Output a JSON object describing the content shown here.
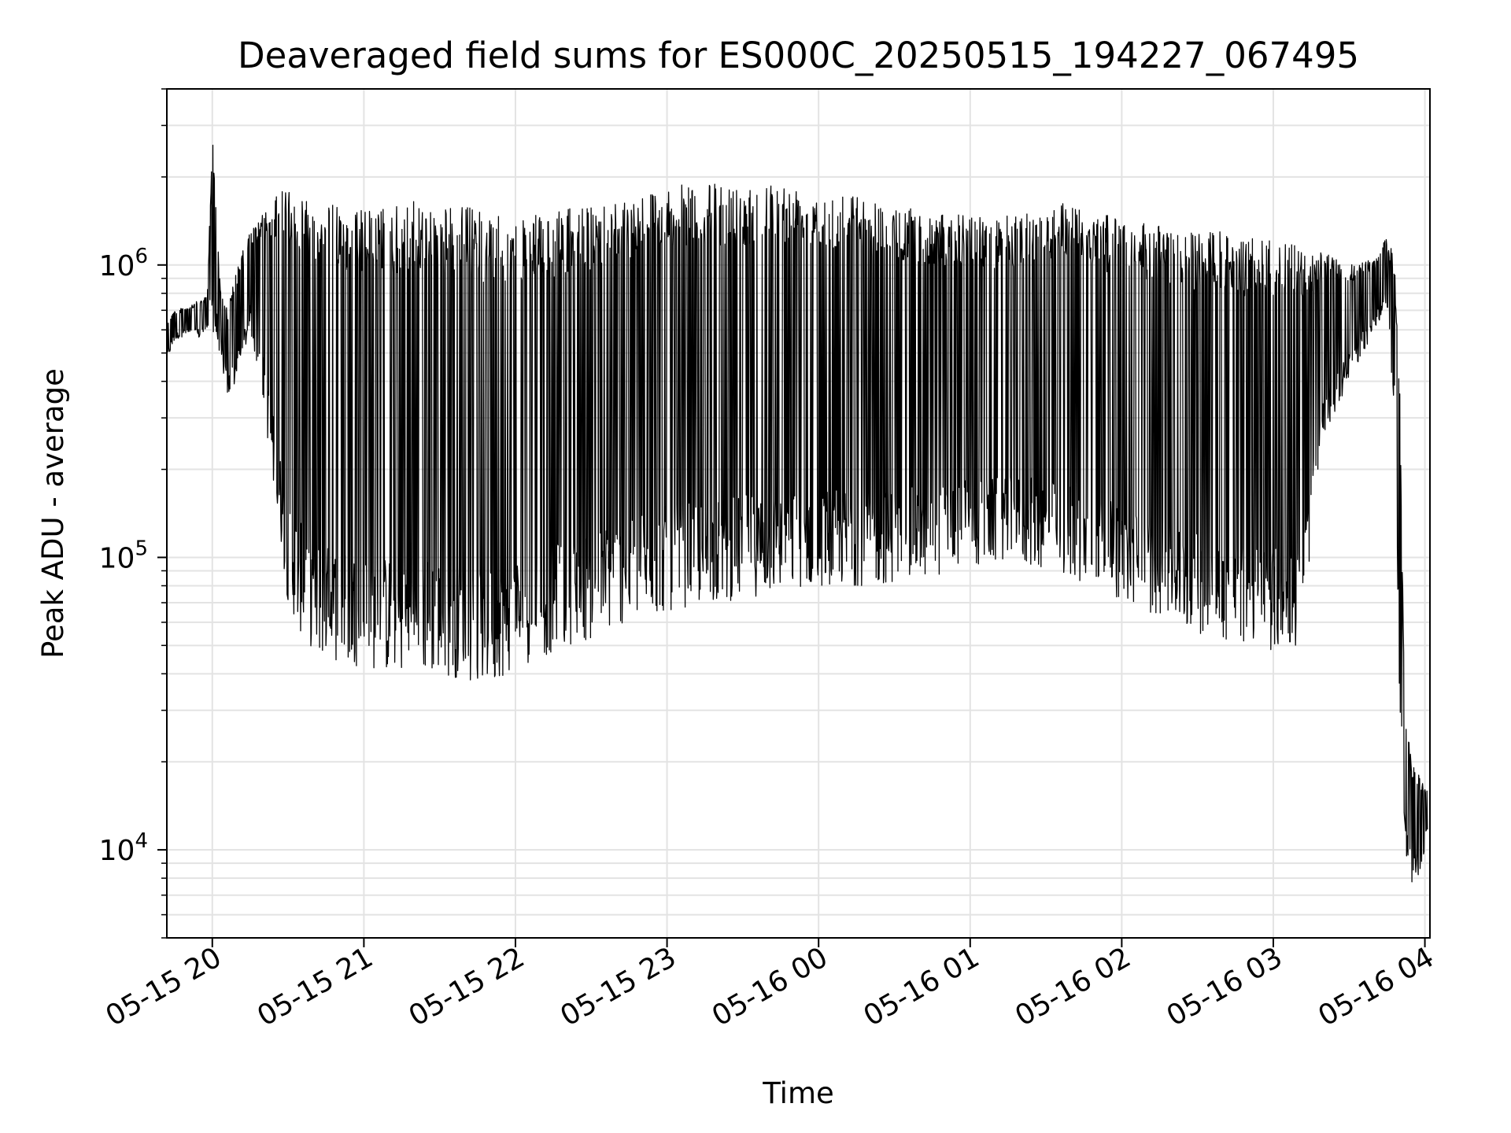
{
  "chart_data": {
    "type": "line",
    "title": "Deaveraged field sums for ES000C_20250515_194227_067495",
    "xlabel": "Time",
    "ylabel": "Peak ADU - average",
    "yscale": "log",
    "xlim": [
      "2025-05-15 19:42",
      "2025-05-16 04:02"
    ],
    "ylim": [
      5000,
      4000000
    ],
    "grid": true,
    "line_color": "#000000",
    "x_tick_labels": [
      "05-15 20",
      "05-15 21",
      "05-15 22",
      "05-15 23",
      "05-16 00",
      "05-16 01",
      "05-16 02",
      "05-16 03",
      "05-16 04"
    ],
    "y_ticks": [
      {
        "value": 10000,
        "base": "10",
        "exp": "4"
      },
      {
        "value": 100000,
        "base": "10",
        "exp": "5"
      },
      {
        "value": 1000000,
        "base": "10",
        "exp": "6"
      }
    ],
    "series": [
      {
        "x": [
          "2025-05-15 19:42",
          "2025-05-15 19:45",
          "2025-05-15 19:50",
          "2025-05-15 19:55",
          "2025-05-15 19:58",
          "2025-05-15 20:00",
          "2025-05-15 20:03",
          "2025-05-15 20:06",
          "2025-05-15 20:10",
          "2025-05-15 20:15",
          "2025-05-15 20:20",
          "2025-05-15 20:25",
          "2025-05-15 20:30",
          "2025-05-15 20:35",
          "2025-05-15 20:40",
          "2025-05-15 20:45",
          "2025-05-15 20:50",
          "2025-05-15 21:00",
          "2025-05-15 21:10",
          "2025-05-15 21:20",
          "2025-05-15 21:30",
          "2025-05-15 21:40",
          "2025-05-15 21:50",
          "2025-05-15 22:00",
          "2025-05-15 22:10",
          "2025-05-15 22:20",
          "2025-05-15 22:30",
          "2025-05-15 22:40",
          "2025-05-15 22:50",
          "2025-05-15 23:00",
          "2025-05-15 23:10",
          "2025-05-15 23:20",
          "2025-05-15 23:30",
          "2025-05-15 23:40",
          "2025-05-15 23:50",
          "2025-05-16 00:00",
          "2025-05-16 00:10",
          "2025-05-16 00:20",
          "2025-05-16 00:30",
          "2025-05-16 00:40",
          "2025-05-16 00:50",
          "2025-05-16 01:00",
          "2025-05-16 01:10",
          "2025-05-16 01:20",
          "2025-05-16 01:30",
          "2025-05-16 01:40",
          "2025-05-16 01:50",
          "2025-05-16 02:00",
          "2025-05-16 02:10",
          "2025-05-16 02:20",
          "2025-05-16 02:30",
          "2025-05-16 02:40",
          "2025-05-16 02:50",
          "2025-05-16 03:00",
          "2025-05-16 03:10",
          "2025-05-16 03:20",
          "2025-05-16 03:30",
          "2025-05-16 03:40",
          "2025-05-16 03:45",
          "2025-05-16 03:48",
          "2025-05-16 03:50",
          "2025-05-16 03:52",
          "2025-05-16 03:55",
          "2025-05-16 03:58",
          "2025-05-16 04:01"
        ],
        "high": [
          650000,
          700000,
          720000,
          760000,
          780000,
          2900000,
          900000,
          700000,
          1000000,
          1300000,
          1500000,
          1700000,
          1900000,
          1800000,
          1700000,
          1650000,
          1600000,
          1550000,
          1600000,
          1650000,
          1600000,
          1600000,
          1500000,
          1400000,
          1500000,
          1550000,
          1600000,
          1700000,
          1800000,
          1850000,
          1900000,
          1900000,
          1900000,
          1950000,
          1900000,
          1850000,
          1800000,
          1700000,
          1600000,
          1550000,
          1500000,
          1500000,
          1450000,
          1500000,
          1600000,
          1700000,
          1500000,
          1450000,
          1400000,
          1350000,
          1300000,
          1300000,
          1250000,
          1250000,
          1150000,
          1100000,
          1000000,
          1050000,
          1250000,
          1050000,
          400000,
          30000,
          20000,
          18000,
          16000
        ],
        "low": [
          470000,
          550000,
          580000,
          560000,
          600000,
          600000,
          500000,
          350000,
          400000,
          600000,
          350000,
          150000,
          70000,
          55000,
          48000,
          45000,
          44000,
          42000,
          40000,
          40000,
          40000,
          38000,
          36000,
          42000,
          45000,
          50000,
          52000,
          58000,
          62000,
          65000,
          68000,
          70000,
          72000,
          75000,
          78000,
          80000,
          80000,
          80000,
          82000,
          85000,
          88000,
          92000,
          95000,
          95000,
          90000,
          85000,
          80000,
          70000,
          65000,
          60000,
          55000,
          52000,
          50000,
          48000,
          48000,
          250000,
          400000,
          600000,
          700000,
          300000,
          30000,
          10000,
          7000,
          8500,
          11000
        ]
      }
    ]
  }
}
